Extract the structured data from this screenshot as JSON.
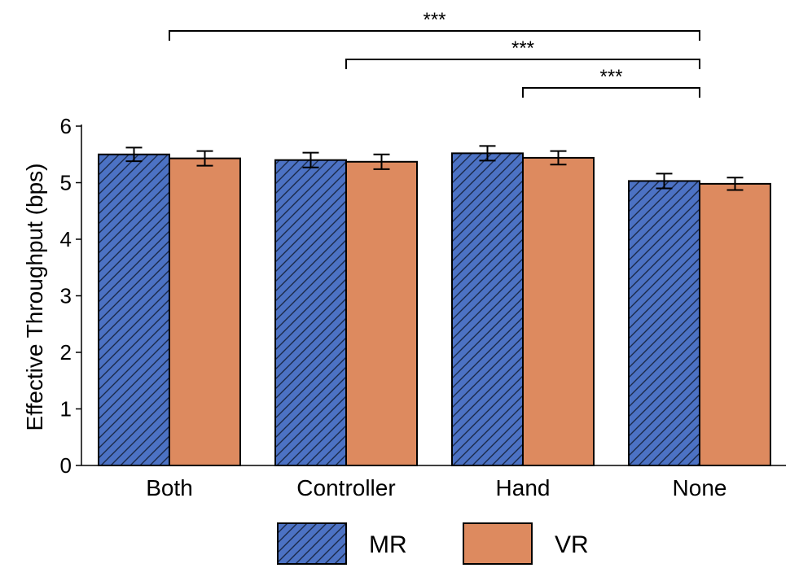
{
  "chart_data": {
    "type": "bar",
    "title": "",
    "xlabel": "",
    "ylabel": "Effective Throughput (bps)",
    "ylim": [
      0,
      6
    ],
    "yticks": [
      0,
      1,
      2,
      3,
      4,
      5,
      6
    ],
    "categories": [
      "Both",
      "Controller",
      "Hand",
      "None"
    ],
    "series": [
      {
        "name": "MR",
        "values": [
          5.5,
          5.4,
          5.52,
          5.03
        ],
        "errors": [
          0.12,
          0.13,
          0.13,
          0.13
        ],
        "color": "#4c72c4",
        "hatch": true
      },
      {
        "name": "VR",
        "values": [
          5.43,
          5.37,
          5.44,
          4.98
        ],
        "errors": [
          0.13,
          0.13,
          0.12,
          0.11
        ],
        "color": "#dd8a5f",
        "hatch": false
      }
    ],
    "significance": [
      {
        "from": "Both",
        "to": "None",
        "label": "***"
      },
      {
        "from": "Controller",
        "to": "None",
        "label": "***"
      },
      {
        "from": "Hand",
        "to": "None",
        "label": "***"
      }
    ],
    "legend": {
      "placement": "bottom-center",
      "entries": [
        "MR",
        "VR"
      ]
    }
  }
}
